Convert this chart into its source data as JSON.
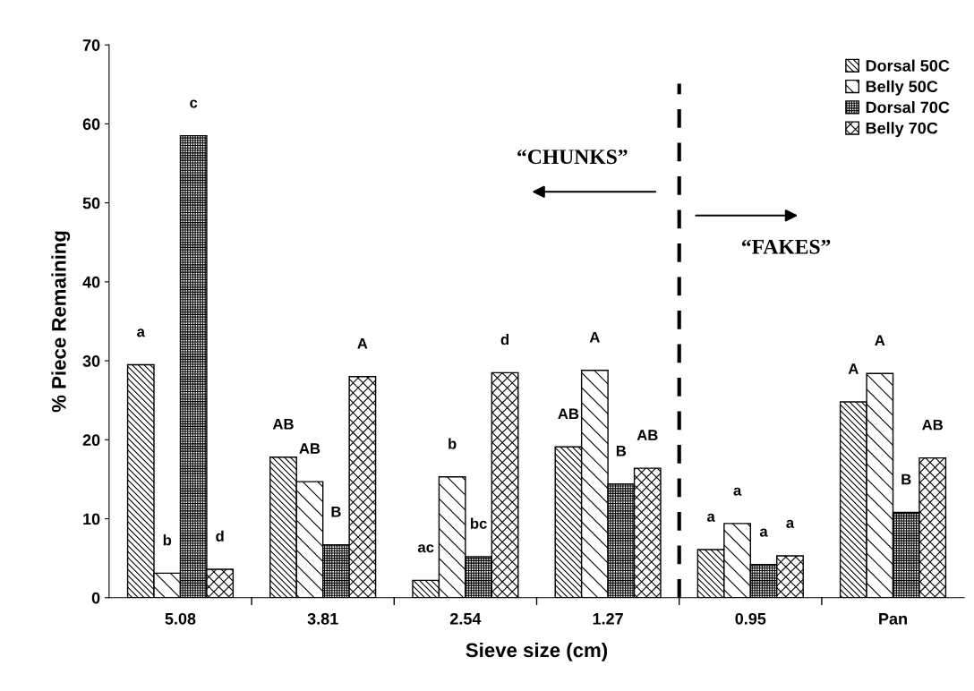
{
  "chart_data": {
    "type": "bar",
    "xlabel": "Sieve size (cm)",
    "ylabel": "% Piece Remaining",
    "categories": [
      "5.08",
      "3.81",
      "2.54",
      "1.27",
      "0.95",
      "Pan"
    ],
    "series": [
      {
        "name": "Dorsal 50C",
        "color": "#000000",
        "values": [
          29.5,
          17.8,
          2.2,
          19.1,
          6.1,
          24.8
        ]
      },
      {
        "name": "Belly 50C",
        "color": "#000000",
        "values": [
          3.1,
          14.7,
          15.3,
          28.8,
          9.4,
          28.4
        ]
      },
      {
        "name": "Dorsal 70C",
        "color": "#000000",
        "values": [
          58.5,
          6.7,
          5.2,
          14.4,
          4.2,
          10.8
        ]
      },
      {
        "name": "Belly 70C",
        "color": "#000000",
        "values": [
          3.6,
          28.0,
          28.5,
          16.4,
          5.3,
          17.7
        ]
      }
    ],
    "ylim": [
      0,
      70
    ],
    "yticks": [
      0,
      10,
      20,
      30,
      40,
      50,
      60,
      70
    ],
    "grid": false,
    "legend": "top right",
    "annotations": [
      "a",
      "b",
      "c",
      "d",
      "AB",
      "AB",
      "B",
      "A",
      "ac",
      "b",
      "bc",
      "d",
      "AB",
      "A",
      "B",
      "AB",
      "a",
      "a",
      "a",
      "a",
      "A",
      "A",
      "B",
      "AB",
      "“CHUNKS”",
      "“FAKES”"
    ]
  }
}
